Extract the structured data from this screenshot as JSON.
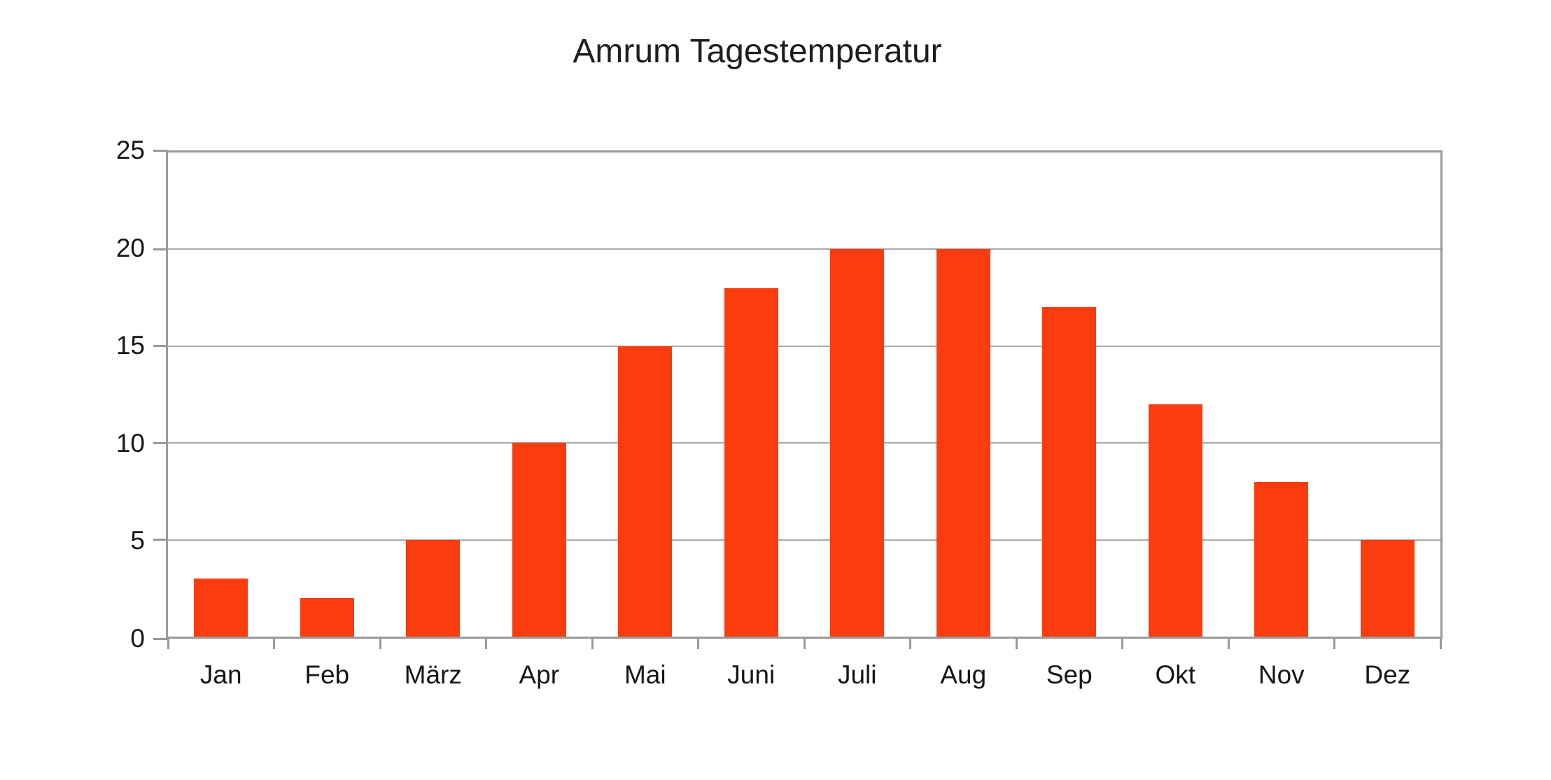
{
  "chart_data": {
    "type": "bar",
    "title": "Amrum Tagestemperatur",
    "categories": [
      "Jan",
      "Feb",
      "März",
      "Apr",
      "Mai",
      "Juni",
      "Juli",
      "Aug",
      "Sep",
      "Okt",
      "Nov",
      "Dez"
    ],
    "values": [
      3,
      2,
      5,
      10,
      15,
      18,
      20,
      20,
      17,
      12,
      8,
      5
    ],
    "xlabel": "",
    "ylabel": "",
    "ylim": [
      0,
      25
    ],
    "yticks": [
      0,
      5,
      10,
      15,
      20,
      25
    ],
    "grid": true,
    "legend_position": "none",
    "colors": {
      "bar": "#fa3c0e",
      "grid": "#a8a8a8",
      "axis_box": "#9a9a9a",
      "text": "#161616",
      "title_text": "#1e1e1e",
      "background": "#ffffff"
    }
  }
}
